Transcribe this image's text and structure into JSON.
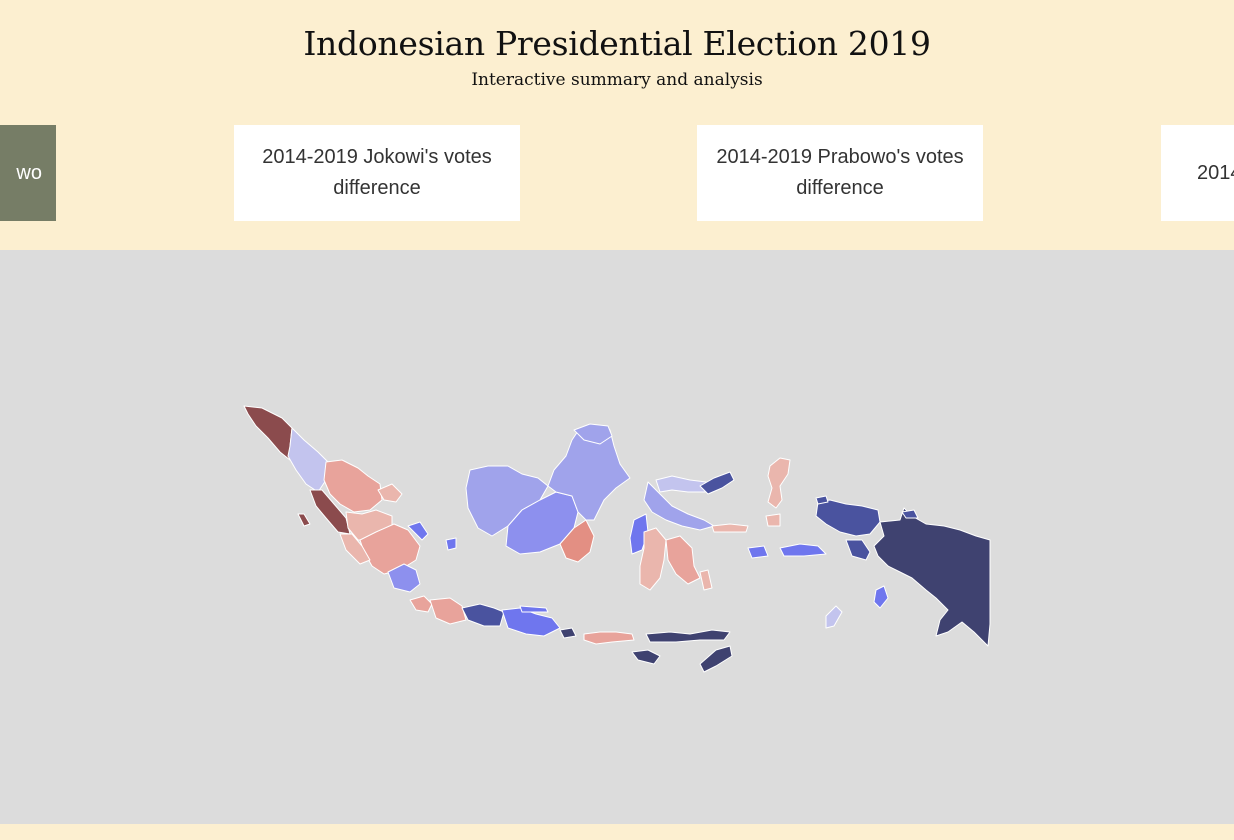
{
  "header": {
    "title": "Indonesian Presidential Election 2019",
    "subtitle": "Interactive summary and analysis"
  },
  "tabs": [
    {
      "label": "wo",
      "active": true
    },
    {
      "label": "2014-2019 Jokowi's votes\ndifference",
      "active": false
    },
    {
      "label": "2014-2019 Prabowo's votes\ndifference",
      "active": false
    },
    {
      "label": "2014",
      "active": false
    }
  ],
  "map": {
    "colors": {
      "deep_red": "#8b4b4d",
      "light_red": "#e8a39b",
      "red": "#e38f83",
      "pale_red": "#eab6ad",
      "pale_blue": "#c3c4ee",
      "light_blue": "#a0a3eb",
      "blue": "#8d90ee",
      "bright_blue": "#6f76ee",
      "medium_blue": "#4a539f",
      "navy": "#3f4270",
      "background": "#dcdcdc"
    }
  }
}
